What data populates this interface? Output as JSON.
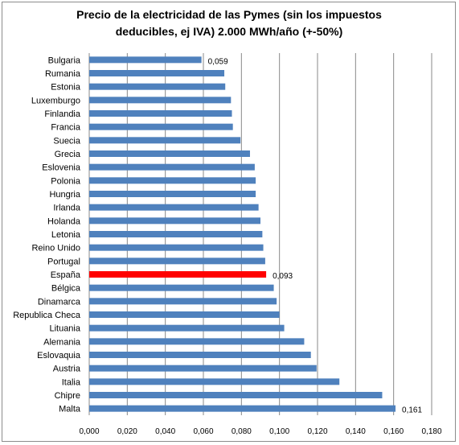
{
  "chart_data": {
    "type": "bar",
    "orientation": "horizontal",
    "title_lines": [
      "Precio de la electricidad de las Pymes (sin los impuestos",
      "deducibles, ej IVA) 2.000 MWh/año (+-50%)"
    ],
    "categories": [
      "Bulgaria",
      "Rumania",
      "Estonia",
      "Luxemburgo",
      "Finlandia",
      "Francia",
      "Suecia",
      "Grecia",
      "Eslovenia",
      "Polonia",
      "Hungria",
      "Irlanda",
      "Holanda",
      "Letonia",
      "Reino Unido",
      "Portugal",
      "España",
      "Bélgica",
      "Dinamarca",
      "Republica Checa",
      "Lituania",
      "Alemania",
      "Eslovaquia",
      "Austria",
      "Italia",
      "Chipre",
      "Malta"
    ],
    "values": [
      0.059,
      0.071,
      0.0715,
      0.0745,
      0.075,
      0.0755,
      0.0795,
      0.0845,
      0.087,
      0.0875,
      0.0875,
      0.089,
      0.09,
      0.091,
      0.0915,
      0.0925,
      0.093,
      0.097,
      0.0985,
      0.1,
      0.1025,
      0.113,
      0.1165,
      0.1195,
      0.1315,
      0.154,
      0.161
    ],
    "highlight": "España",
    "data_labels": [
      {
        "category": "Bulgaria",
        "text": "0,059"
      },
      {
        "category": "España",
        "text": "0,093"
      },
      {
        "category": "Malta",
        "text": "0,161"
      }
    ],
    "xlim": [
      0,
      0.18
    ],
    "x_ticks": [
      "0,000",
      "0,020",
      "0,040",
      "0,060",
      "0,080",
      "0,100",
      "0,120",
      "0,140",
      "0,160",
      "0,180"
    ],
    "grid": true,
    "legend": "none",
    "colors": {
      "bar": "#4f81bd",
      "highlight": "#ff0000",
      "grid": "#888888"
    }
  }
}
